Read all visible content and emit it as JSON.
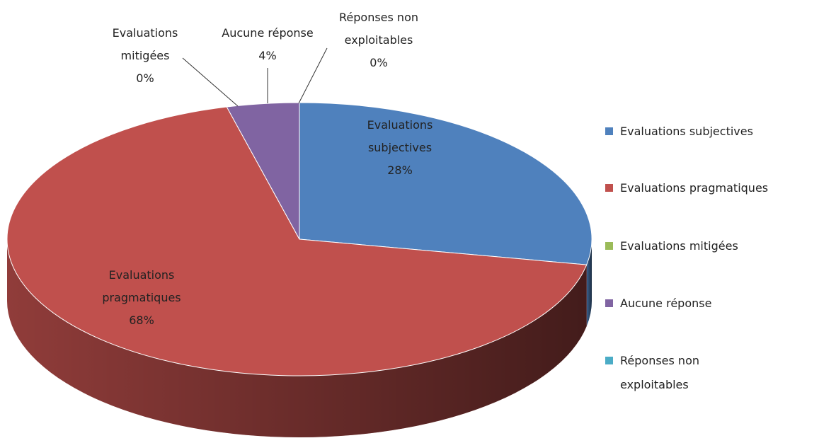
{
  "chart_data": {
    "type": "pie",
    "three_d": true,
    "categories": [
      "Evaluations subjectives",
      "Evaluations pragmatiques",
      "Evaluations mitigées",
      "Aucune réponse",
      "Réponses non exploitables"
    ],
    "values": [
      28,
      68,
      0,
      4,
      0
    ],
    "value_labels": [
      "28%",
      "68%",
      "0%",
      "4%",
      "0%"
    ],
    "colors": [
      "#4f81bd",
      "#c0504d",
      "#9bbb59",
      "#8064a2",
      "#4bacc6"
    ],
    "legend": "right"
  }
}
